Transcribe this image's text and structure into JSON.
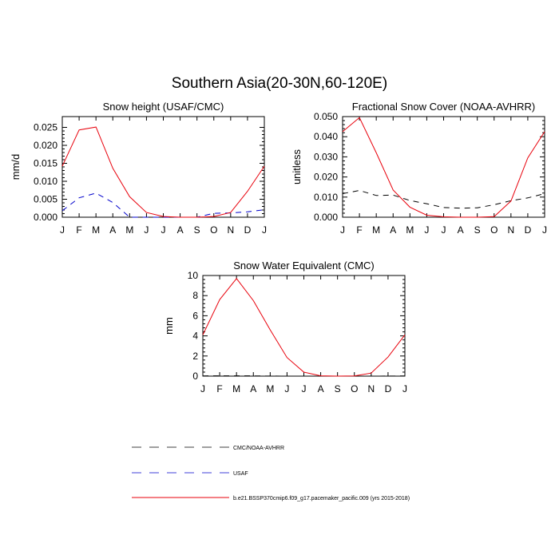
{
  "figure": {
    "title": "Southern Asia(20-30N,60-120E)"
  },
  "legend": {
    "entries": [
      {
        "label": "CMC/NOAA-AVHRR",
        "color": "#000000",
        "dash": "dashed"
      },
      {
        "label": "USAF",
        "color": "#0000cc",
        "dash": "dashed"
      },
      {
        "label": "b.e21.BSSP370cmip6.f09_g17.pacemaker_pacific.009 (yrs 2015-2018)",
        "color": "#e8000b",
        "dash": "solid"
      }
    ]
  },
  "chart_data": [
    {
      "type": "line",
      "title": "Snow height (USAF/CMC)",
      "xlabel": "",
      "ylabel": "mm/d",
      "categories": [
        "J",
        "F",
        "M",
        "A",
        "M",
        "J",
        "J",
        "A",
        "S",
        "O",
        "N",
        "D",
        "J"
      ],
      "yticks": [
        "0.000",
        "0.005",
        "0.010",
        "0.015",
        "0.020",
        "0.025"
      ],
      "ylim": [
        0,
        0.028
      ],
      "series": [
        {
          "name": "CMC/NOAA-AVHRR",
          "color": "#000000",
          "dash": "dashed",
          "values": [
            0,
            0,
            0,
            0,
            0,
            0,
            0,
            0,
            0,
            0,
            0,
            0,
            0
          ]
        },
        {
          "name": "USAF",
          "color": "#0000cc",
          "dash": "dashed",
          "values": [
            0.0018,
            0.0054,
            0.0067,
            0.0041,
            0.0,
            0.0,
            0.0,
            0.0,
            0.0,
            0.0011,
            0.0012,
            0.0015,
            0.0021
          ]
        },
        {
          "name": "b.e21.BSSP370cmip6.f09_g17.pacemaker_pacific.009 (yrs 2015-2018)",
          "color": "#e8000b",
          "dash": "solid",
          "values": [
            0.0142,
            0.0243,
            0.0251,
            0.0136,
            0.0057,
            0.0013,
            0.0002,
            0.0,
            0.0,
            0.0002,
            0.0013,
            0.0072,
            0.0142
          ]
        }
      ]
    },
    {
      "type": "line",
      "title": "Fractional Snow Cover (NOAA-AVHRR)",
      "xlabel": "",
      "ylabel": "unitless",
      "categories": [
        "J",
        "F",
        "M",
        "A",
        "M",
        "J",
        "J",
        "A",
        "S",
        "O",
        "N",
        "D",
        "J"
      ],
      "yticks": [
        "0.000",
        "0.010",
        "0.020",
        "0.030",
        "0.040",
        "0.050"
      ],
      "ylim": [
        0,
        0.05
      ],
      "series": [
        {
          "name": "CMC/NOAA-AVHRR",
          "color": "#000000",
          "dash": "dashed",
          "values": [
            0.0117,
            0.0133,
            0.0108,
            0.011,
            0.0083,
            0.0067,
            0.0048,
            0.0045,
            0.0047,
            0.0062,
            0.0082,
            0.0096,
            0.0117
          ]
        },
        {
          "name": "b.e21.BSSP370cmip6.f09_g17.pacemaker_pacific.009 (yrs 2015-2018)",
          "color": "#e8000b",
          "dash": "solid",
          "values": [
            0.0425,
            0.0495,
            0.032,
            0.0135,
            0.005,
            0.001,
            0.0002,
            0.0,
            0.0,
            0.0003,
            0.008,
            0.0295,
            0.0425
          ]
        }
      ]
    },
    {
      "type": "line",
      "title": "Snow Water Equivalent (CMC)",
      "xlabel": "",
      "ylabel": "mm",
      "categories": [
        "J",
        "F",
        "M",
        "A",
        "M",
        "J",
        "J",
        "A",
        "S",
        "O",
        "N",
        "D",
        "J"
      ],
      "yticks": [
        "0",
        "2",
        "4",
        "6",
        "8",
        "10"
      ],
      "ylim": [
        0,
        10
      ],
      "series": [
        {
          "name": "CMC/NOAA-AVHRR",
          "color": "#000000",
          "dash": "dashed",
          "values": [
            0.02,
            0.03,
            0.03,
            0.02,
            0.01,
            0.0,
            0.0,
            0.0,
            0.0,
            0.0,
            0.0,
            0.01,
            0.02
          ]
        },
        {
          "name": "b.e21.BSSP370cmip6.f09_g17.pacemaker_pacific.009 (yrs 2015-2018)",
          "color": "#e8000b",
          "dash": "solid",
          "values": [
            4.1,
            7.6,
            9.7,
            7.5,
            4.6,
            1.85,
            0.4,
            0.03,
            0.0,
            0.02,
            0.3,
            1.9,
            4.1
          ]
        }
      ]
    }
  ]
}
